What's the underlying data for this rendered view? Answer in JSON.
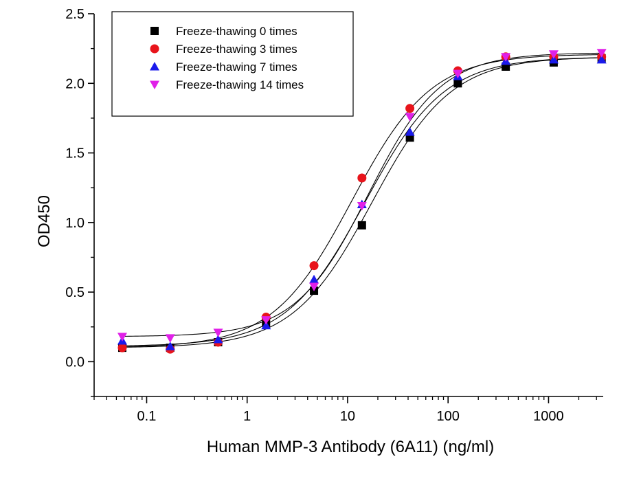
{
  "chart_data": {
    "type": "scatter",
    "title": "",
    "xlabel": "Human MMP-3 Antibody (6A11) (ng/ml)",
    "ylabel": "OD450",
    "xscale": "log",
    "xlim": [
      0.03,
      3500
    ],
    "ylim": [
      -0.25,
      2.5
    ],
    "x_ticks": [
      0.1,
      1,
      10,
      100,
      1000
    ],
    "x_tick_labels": [
      "0.1",
      "1",
      "10",
      "100",
      "1000"
    ],
    "y_ticks": [
      0.0,
      0.5,
      1.0,
      1.5,
      2.0,
      2.5
    ],
    "y_tick_labels": [
      "0.0",
      "0.5",
      "1.0",
      "1.5",
      "2.0",
      "2.5"
    ],
    "grid": false,
    "legend": "top-left",
    "x": [
      0.0572,
      0.1715,
      0.5144,
      1.543,
      4.63,
      13.89,
      41.67,
      125,
      375,
      1125,
      3375
    ],
    "series": [
      {
        "name": "Freeze-thawing 0 times",
        "marker": "square",
        "color": "#000000",
        "values": [
          0.1,
          0.1,
          0.14,
          0.28,
          0.51,
          0.98,
          1.61,
          2.0,
          2.12,
          2.15,
          2.18
        ],
        "fit": {
          "bottom": 0.1,
          "top": 2.19,
          "ec50": 17.5,
          "hill": 1.1
        }
      },
      {
        "name": "Freeze-thawing 3 times",
        "marker": "circle",
        "color": "#e8141b",
        "values": [
          0.1,
          0.09,
          0.14,
          0.32,
          0.69,
          1.32,
          1.82,
          2.09,
          2.19,
          2.19,
          2.19
        ],
        "fit": {
          "bottom": 0.1,
          "top": 2.21,
          "ec50": 11.0,
          "hill": 1.1
        }
      },
      {
        "name": "Freeze-thawing 7 times",
        "marker": "triangle-up",
        "color": "#1a1aeb",
        "values": [
          0.15,
          0.11,
          0.16,
          0.26,
          0.59,
          1.13,
          1.65,
          2.05,
          2.16,
          2.17,
          2.17
        ],
        "fit": {
          "bottom": 0.11,
          "top": 2.19,
          "ec50": 15.0,
          "hill": 1.1
        }
      },
      {
        "name": "Freeze-thawing 14 times",
        "marker": "triangle-down",
        "color": "#e020e8",
        "values": [
          0.18,
          0.17,
          0.21,
          0.3,
          0.54,
          1.12,
          1.76,
          2.07,
          2.19,
          2.21,
          2.22
        ],
        "fit": {
          "bottom": 0.18,
          "top": 2.22,
          "ec50": 16.0,
          "hill": 1.2
        }
      }
    ]
  }
}
